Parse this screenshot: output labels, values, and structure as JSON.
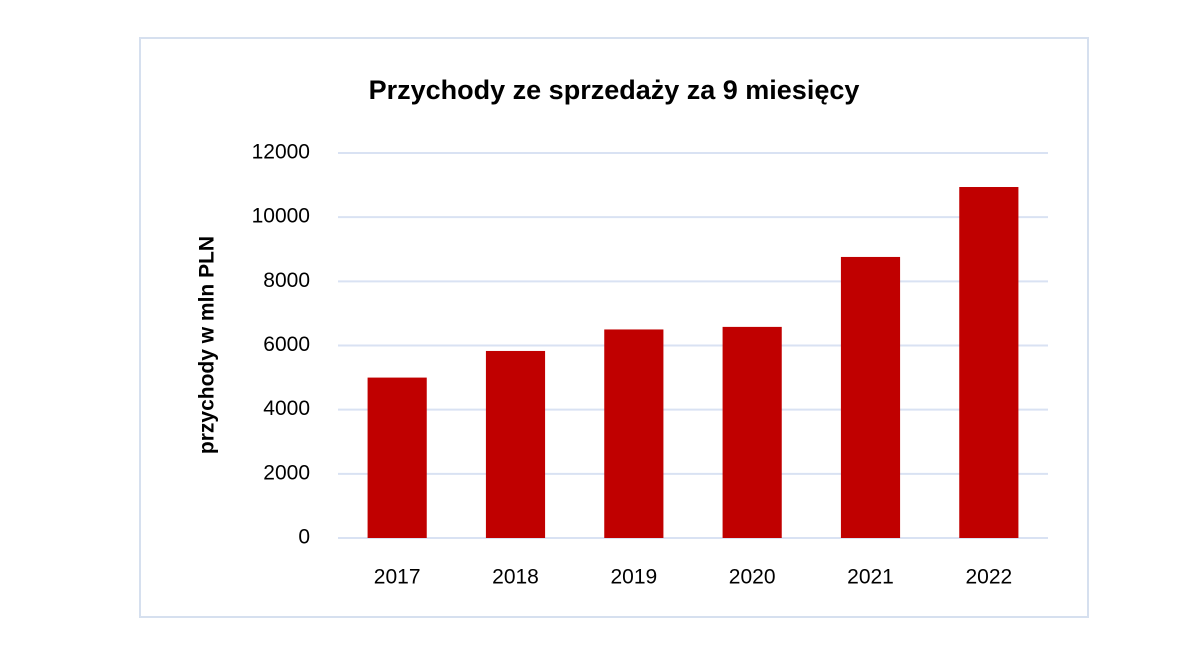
{
  "chart_data": {
    "type": "bar",
    "title": "Przychody ze sprzedaży za 9 miesięcy",
    "y_label": "przychody w mln PLN",
    "categories": [
      "2017",
      "2018",
      "2019",
      "2020",
      "2021",
      "2022"
    ],
    "values": [
      5000,
      5830,
      6500,
      6580,
      8760,
      10940
    ],
    "color": "#c00000",
    "ylim": [
      0,
      12000
    ],
    "yticks": [
      0,
      2000,
      4000,
      6000,
      8000,
      10000,
      12000
    ],
    "grid": true
  }
}
